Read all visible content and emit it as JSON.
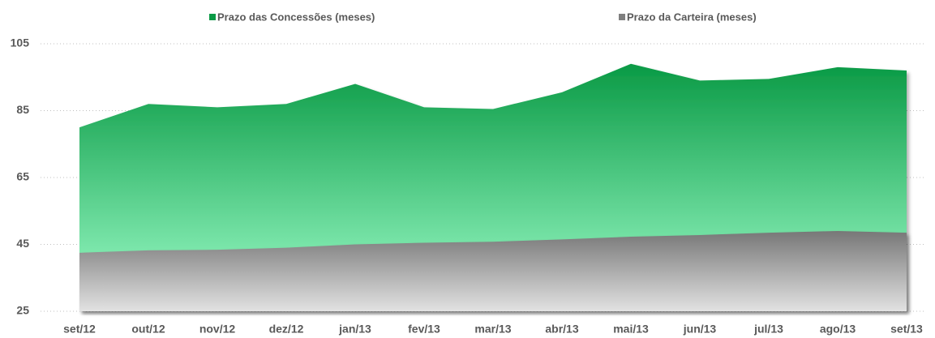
{
  "chart_data": {
    "type": "area",
    "categories": [
      "set/12",
      "out/12",
      "nov/12",
      "dez/12",
      "jan/13",
      "fev/13",
      "mar/13",
      "abr/13",
      "mai/13",
      "jun/13",
      "jul/13",
      "ago/13",
      "set/13"
    ],
    "series": [
      {
        "name": "Prazo das Concessões (meses)",
        "color": "#0a9a45",
        "values": [
          80,
          87,
          86,
          87,
          93,
          86,
          85.5,
          90.5,
          99,
          94,
          94.5,
          98,
          97
        ]
      },
      {
        "name": "Prazo da Carteira (meses)",
        "color": "#7f7f7f",
        "values": [
          42.5,
          43.2,
          43.4,
          44,
          45,
          45.5,
          45.8,
          46.5,
          47.3,
          47.8,
          48.5,
          49,
          48.5
        ]
      }
    ],
    "ylim": [
      25,
      105
    ],
    "yticks": [
      25,
      45,
      65,
      85,
      105
    ],
    "grid": true,
    "legend": "top"
  }
}
